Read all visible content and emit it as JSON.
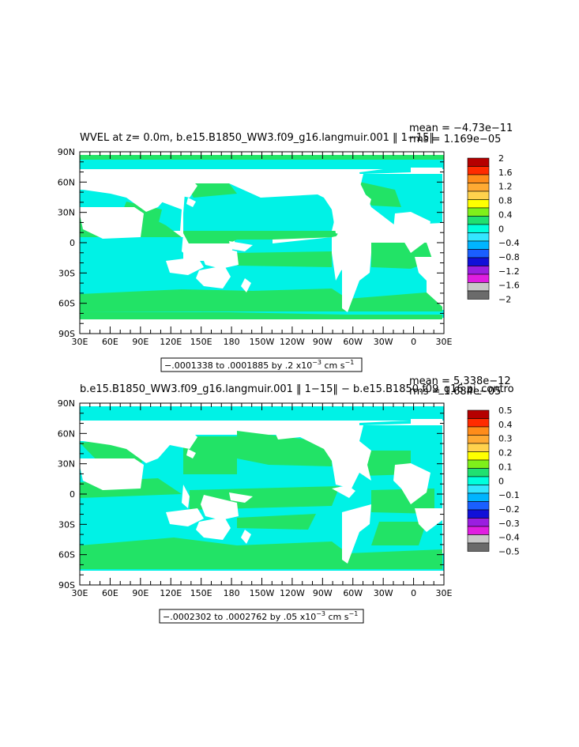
{
  "chart_data": [
    {
      "type": "heatmap",
      "title": "WVEL at z=    0.0m, b.e15.B1850_WW3.f09_g16.langmuir.001 ‖ 1−15‖",
      "stats": [
        "mean = −4.73e−11",
        "rms = 1.169e−05"
      ],
      "x_ticks": [
        "30E",
        "60E",
        "90E",
        "120E",
        "150E",
        "180",
        "150W",
        "120W",
        "90W",
        "60W",
        "30W",
        "0",
        "30E"
      ],
      "y_ticks": [
        "90N",
        "60N",
        "30N",
        "0",
        "30S",
        "60S",
        "90S"
      ],
      "colorbar_labels": [
        "2",
        "1.6",
        "1.2",
        "0.8",
        "0.4",
        "0",
        "−0.4",
        "−0.8",
        "−1.2",
        "−1.6",
        "−2"
      ],
      "colorbar_colors": [
        "#b50000",
        "#ff2b00",
        "#ff8c1a",
        "#ffaa33",
        "#ffd24d",
        "#ffff00",
        "#7ff01a",
        "#20e070",
        "#00ffdd",
        "#33e6ff",
        "#00b4ff",
        "#1a5fff",
        "#1010d8",
        "#9a1ee0",
        "#e01ee0",
        "#c8c8c8",
        "#6b6b6b"
      ],
      "range_box": "−.0001338 to .0001885 by .2 x10",
      "range_exp": "−3",
      "range_units": " cm s",
      "range_units_exp": "−1",
      "ocean_colors": {
        "near_zero_positive": "#22e366",
        "near_zero_negative": "#00f2e6"
      }
    },
    {
      "type": "heatmap",
      "title": "b.e15.B1850_WW3.f09_g16.langmuir.001 ‖ 1−15‖ − b.e15.B1850.f09_g16.pi_contro",
      "stats": [
        "mean = 5.338e−12",
        "rms = 1.684e−05"
      ],
      "x_ticks": [
        "30E",
        "60E",
        "90E",
        "120E",
        "150E",
        "180",
        "150W",
        "120W",
        "90W",
        "60W",
        "30W",
        "0",
        "30E"
      ],
      "y_ticks": [
        "90N",
        "60N",
        "30N",
        "0",
        "30S",
        "60S",
        "90S"
      ],
      "colorbar_labels": [
        "0.5",
        "0.4",
        "0.3",
        "0.2",
        "0.1",
        "0",
        "−0.1",
        "−0.2",
        "−0.3",
        "−0.4",
        "−0.5"
      ],
      "colorbar_colors": [
        "#b50000",
        "#ff2b00",
        "#ff8c1a",
        "#ffaa33",
        "#ffd24d",
        "#ffff00",
        "#7ff01a",
        "#20e070",
        "#00ffdd",
        "#33e6ff",
        "#00b4ff",
        "#1a5fff",
        "#1010d8",
        "#9a1ee0",
        "#e01ee0",
        "#c8c8c8",
        "#6b6b6b"
      ],
      "range_box": "−.0002302 to .0002762 by .05 x10",
      "range_exp": "−3",
      "range_units": " cm s",
      "range_units_exp": "−1",
      "ocean_colors": {
        "near_zero_positive": "#22e366",
        "near_zero_negative": "#00f2e6"
      }
    }
  ]
}
